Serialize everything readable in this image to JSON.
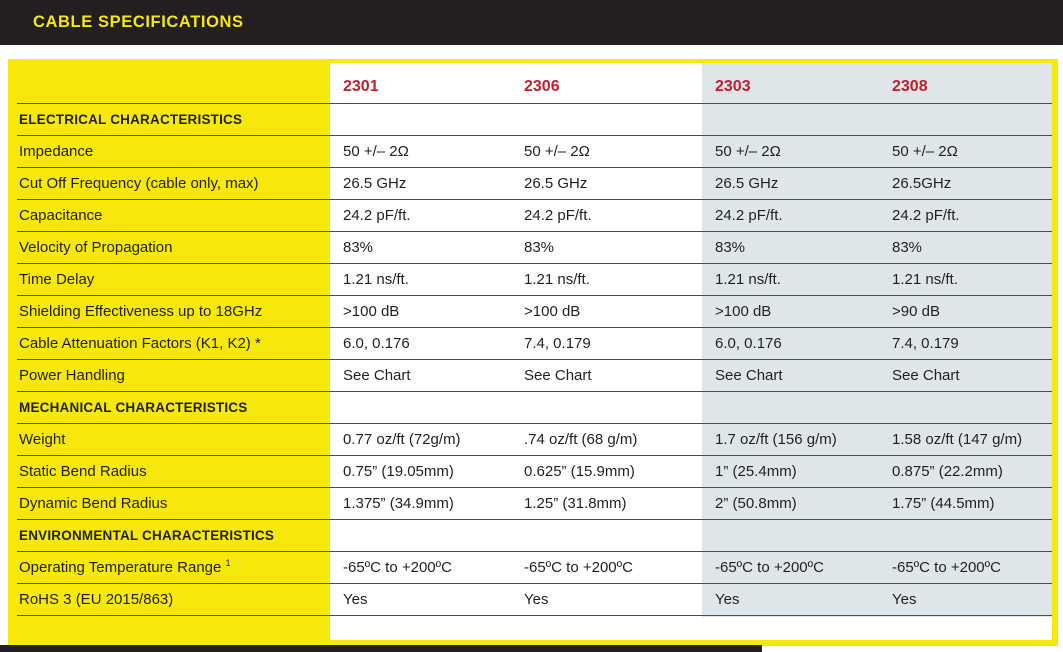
{
  "header": {
    "title": "CABLE SPECIFICATIONS"
  },
  "colors": {
    "title_bar_bg": "#231f20",
    "accent_yellow": "#f5e80a",
    "column_header_red": "#be1e2d",
    "highlight_column_bg": "#dfe6e9",
    "row_line": "#4d4d4f",
    "text": "#231f20"
  },
  "table": {
    "columns": [
      "2301",
      "2306",
      "2303",
      "2308"
    ],
    "rows": [
      {
        "type": "section",
        "label": "ELECTRICAL CHARACTERISTICS",
        "values": [
          "",
          "",
          "",
          ""
        ]
      },
      {
        "type": "data",
        "label": "Impedance",
        "values": [
          "50 +/– 2Ω",
          "50 +/– 2Ω",
          "50 +/– 2Ω",
          "50 +/– 2Ω"
        ]
      },
      {
        "type": "data",
        "label": "Cut Off Frequency (cable only, max)",
        "values": [
          "26.5 GHz",
          "26.5 GHz",
          "26.5 GHz",
          "26.5GHz"
        ]
      },
      {
        "type": "data",
        "label": "Capacitance",
        "values": [
          "24.2 pF/ft.",
          "24.2 pF/ft.",
          "24.2 pF/ft.",
          "24.2 pF/ft."
        ]
      },
      {
        "type": "data",
        "label": "Velocity of Propagation",
        "values": [
          "83%",
          "83%",
          "83%",
          "83%"
        ]
      },
      {
        "type": "data",
        "label": "Time Delay",
        "values": [
          "1.21 ns/ft.",
          "1.21 ns/ft.",
          "1.21 ns/ft.",
          "1.21  ns/ft."
        ]
      },
      {
        "type": "data",
        "label": "Shielding Effectiveness up to 18GHz",
        "values": [
          ">100 dB",
          ">100 dB",
          ">100 dB",
          ">90 dB"
        ]
      },
      {
        "type": "data",
        "label": "Cable Attenuation Factors (K1, K2) *",
        "values": [
          "6.0, 0.176",
          "7.4, 0.179",
          "6.0, 0.176",
          "7.4, 0.179"
        ]
      },
      {
        "type": "data",
        "label": "Power Handling",
        "values": [
          "See Chart",
          "See Chart",
          "See Chart",
          "See Chart"
        ]
      },
      {
        "type": "section",
        "label": "MECHANICAL CHARACTERISTICS",
        "values": [
          "",
          "",
          "",
          ""
        ]
      },
      {
        "type": "data",
        "label": "Weight",
        "values": [
          "0.77 oz/ft  (72g/m)",
          ".74 oz/ft (68 g/m)",
          "1.7 oz/ft (156 g/m)",
          "1.58 oz/ft (147 g/m)"
        ]
      },
      {
        "type": "data",
        "label": "Static Bend Radius",
        "values": [
          "0.75” (19.05mm)",
          "0.625” (15.9mm)",
          "1” (25.4mm)",
          "0.875” (22.2mm)"
        ]
      },
      {
        "type": "data",
        "label": "Dynamic Bend Radius",
        "values": [
          "1.375” (34.9mm)",
          "1.25” (31.8mm)",
          "2” (50.8mm)",
          "1.75” (44.5mm)"
        ]
      },
      {
        "type": "section",
        "label": "ENVIRONMENTAL CHARACTERISTICS",
        "values": [
          "",
          "",
          "",
          ""
        ]
      },
      {
        "type": "data",
        "label": "Operating Temperature Range",
        "label_superscript": "1",
        "values": [
          "-65ºC to +200ºC",
          "-65ºC to +200ºC",
          "-65ºC to +200ºC",
          "-65ºC to +200ºC"
        ]
      },
      {
        "type": "data",
        "label": "RoHS 3 (EU 2015/863)",
        "values": [
          "Yes",
          "Yes",
          "Yes",
          "Yes"
        ]
      }
    ]
  }
}
